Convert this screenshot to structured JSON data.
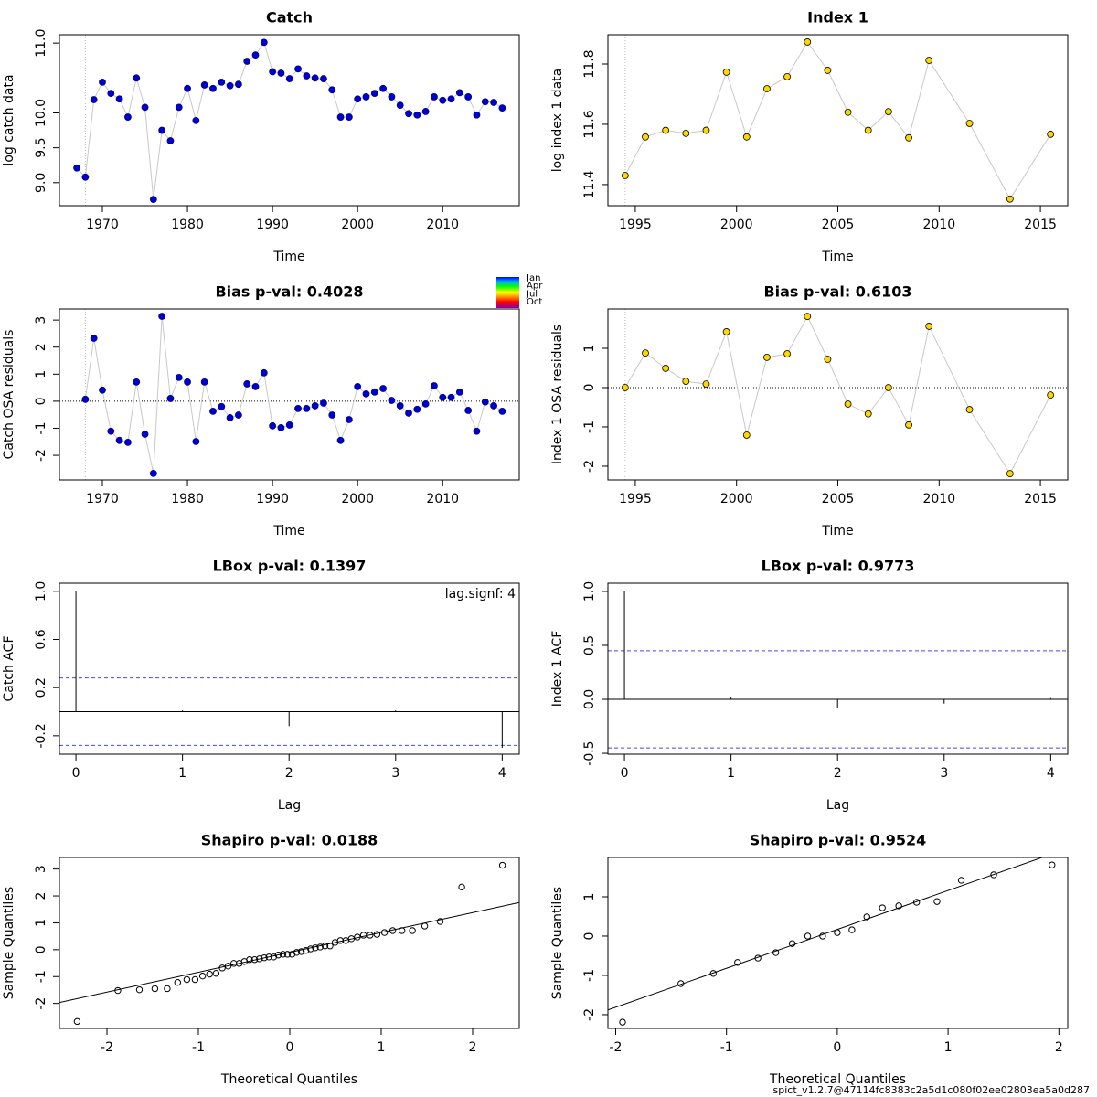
{
  "chart_data": [
    {
      "type": "line",
      "title": "Catch",
      "title_color": "#000000",
      "xlabel": "Time",
      "ylabel": "log catch data",
      "x": [
        1967,
        1968,
        1969,
        1970,
        1971,
        1972,
        1973,
        1974,
        1975,
        1976,
        1977,
        1978,
        1979,
        1980,
        1981,
        1982,
        1983,
        1984,
        1985,
        1986,
        1987,
        1988,
        1989,
        1990,
        1991,
        1992,
        1993,
        1994,
        1995,
        1996,
        1997,
        1998,
        1999,
        2000,
        2001,
        2002,
        2003,
        2004,
        2005,
        2006,
        2007,
        2008,
        2009,
        2010,
        2011,
        2012,
        2013,
        2014,
        2015,
        2016,
        2017
      ],
      "values": [
        9.21,
        9.08,
        10.19,
        10.44,
        10.28,
        10.2,
        9.94,
        10.5,
        10.08,
        8.76,
        9.75,
        9.6,
        10.08,
        10.35,
        9.89,
        10.4,
        10.35,
        10.44,
        10.39,
        10.41,
        10.74,
        10.83,
        11.01,
        10.59,
        10.57,
        10.49,
        10.63,
        10.53,
        10.5,
        10.49,
        10.33,
        9.94,
        9.94,
        10.2,
        10.23,
        10.28,
        10.35,
        10.23,
        10.11,
        9.99,
        9.97,
        10.02,
        10.23,
        10.18,
        10.2,
        10.29,
        10.23,
        9.97,
        10.16,
        10.15,
        10.07
      ],
      "color": "#0000cd",
      "edge": "#00008b",
      "xlim": [
        1964.95,
        2019
      ],
      "ylim": [
        8.67,
        11.12
      ],
      "xticks": [
        1970,
        1980,
        1990,
        2000,
        2010
      ],
      "yticks": [
        {
          "value": 9,
          "label": "9.0"
        },
        9.5,
        {
          "value": 10,
          "label": "10.0"
        },
        {
          "value": 11,
          "label": "11.0"
        }
      ],
      "vline": 1968
    },
    {
      "type": "line",
      "title": "Index 1",
      "title_color": "#000000",
      "xlabel": "Time",
      "ylabel": "log index 1 data",
      "x": [
        1994.5,
        1995.5,
        1996.5,
        1997.5,
        1998.5,
        1999.5,
        2000.5,
        2001.5,
        2002.5,
        2003.5,
        2004.5,
        2005.5,
        2006.5,
        2007.5,
        2008.5,
        2009.5,
        2011.5,
        2013.5,
        2015.5
      ],
      "values": [
        11.43,
        11.558,
        11.58,
        11.57,
        11.58,
        11.773,
        11.558,
        11.718,
        11.758,
        11.873,
        11.779,
        11.64,
        11.58,
        11.642,
        11.555,
        11.812,
        11.603,
        11.352,
        11.567
      ],
      "color": "#ffd700",
      "edge": "#000000",
      "xlim": [
        1993.65,
        2016.35
      ],
      "ylim": [
        11.33,
        11.897
      ],
      "xticks": [
        1995,
        2000,
        2005,
        2010,
        2015
      ],
      "yticks": [
        11.4,
        11.6,
        11.8
      ],
      "vline": 1994.5
    },
    {
      "type": "line",
      "title": "Bias p-val: 0.4028",
      "title_color": "#228b22",
      "xlabel": "Time",
      "ylabel": "Catch OSA residuals",
      "x": [
        1968,
        1969,
        1970,
        1971,
        1972,
        1973,
        1974,
        1975,
        1976,
        1977,
        1978,
        1979,
        1980,
        1981,
        1982,
        1983,
        1984,
        1985,
        1986,
        1987,
        1988,
        1989,
        1990,
        1991,
        1992,
        1993,
        1994,
        1995,
        1996,
        1997,
        1998,
        1999,
        2000,
        2001,
        2002,
        2003,
        2004,
        2005,
        2006,
        2007,
        2008,
        2009,
        2010,
        2011,
        2012,
        2013,
        2014,
        2015,
        2016,
        2017
      ],
      "values": [
        0.07,
        2.33,
        0.41,
        -1.11,
        -1.45,
        -1.52,
        0.71,
        -1.22,
        -2.67,
        3.14,
        0.1,
        0.88,
        0.71,
        -1.49,
        0.71,
        -0.37,
        -0.2,
        -0.61,
        -0.51,
        0.64,
        0.54,
        1.05,
        -0.91,
        -0.98,
        -0.88,
        -0.27,
        -0.27,
        -0.17,
        -0.07,
        -0.51,
        -1.45,
        -0.68,
        0.54,
        0.27,
        0.34,
        0.47,
        0.03,
        -0.17,
        -0.44,
        -0.3,
        -0.1,
        0.57,
        0.14,
        0.14,
        0.34,
        -0.34,
        -1.11,
        -0.03,
        -0.17,
        -0.37
      ],
      "color": "#0000cd",
      "edge": "#00008b",
      "xlim": [
        1964.95,
        2019
      ],
      "ylim": [
        -2.91,
        3.41
      ],
      "xticks": [
        1970,
        1980,
        1990,
        2000,
        2010
      ],
      "yticks": [
        -2,
        -1,
        0,
        1,
        2,
        3
      ],
      "vline": 1968,
      "hline": 0,
      "legend": [
        "Jan",
        "Apr",
        "Jul",
        "Oct"
      ]
    },
    {
      "type": "line",
      "title": "Bias p-val: 0.6103",
      "title_color": "#228b22",
      "xlabel": "Time",
      "ylabel": "Index 1 OSA residuals",
      "x": [
        1994.5,
        1995.5,
        1996.5,
        1997.5,
        1998.5,
        1999.5,
        2000.5,
        2001.5,
        2002.5,
        2003.5,
        2004.5,
        2005.5,
        2006.5,
        2007.5,
        2008.5,
        2009.5,
        2011.5,
        2013.5,
        2015.5
      ],
      "values": [
        0,
        0.88,
        0.49,
        0.16,
        0.09,
        1.42,
        -1.21,
        0.77,
        0.86,
        1.81,
        0.72,
        -0.42,
        -0.67,
        0,
        -0.95,
        1.56,
        -0.56,
        -2.19,
        -0.19
      ],
      "color": "#ffd700",
      "edge": "#000000",
      "xlim": [
        1993.65,
        2016.35
      ],
      "ylim": [
        -2.35,
        2.0
      ],
      "xticks": [
        1995,
        2000,
        2005,
        2010,
        2015
      ],
      "yticks": [
        -2,
        -1,
        0,
        1
      ],
      "vline": 1994.5,
      "hline": 0
    },
    {
      "type": "stem",
      "title": "LBox p-val: 0.1397",
      "title_color": "#228b22",
      "xlabel": "Lag",
      "ylabel": "Catch ACF",
      "x": [
        0,
        1,
        2,
        3,
        4
      ],
      "values": [
        1,
        0.01,
        -0.12,
        0.01,
        -0.3
      ],
      "ci_lines": [
        0.28,
        -0.28
      ],
      "hline": 0,
      "xlim": [
        -0.155,
        4.16
      ],
      "ylim": [
        -0.353,
        1.067
      ],
      "xticks": [
        0,
        1,
        2,
        3,
        4
      ],
      "yticks": [
        -0.2,
        0.2,
        0.6,
        {
          "value": 1,
          "label": "1.0"
        }
      ],
      "annotation": "lag.signf: 4"
    },
    {
      "type": "stem",
      "title": "LBox p-val: 0.9773",
      "title_color": "#228b22",
      "xlabel": "Lag",
      "ylabel": "Index 1 ACF",
      "x": [
        0,
        1,
        2,
        3,
        4
      ],
      "values": [
        1,
        0.025,
        -0.08,
        -0.04,
        0.02
      ],
      "ci_lines": [
        0.45,
        -0.45
      ],
      "hline": 0,
      "xlim": [
        -0.155,
        4.16
      ],
      "ylim": [
        -0.508,
        1.076
      ],
      "xticks": [
        0,
        1,
        2,
        3,
        4
      ],
      "yticks": [
        -0.5,
        {
          "value": 0,
          "label": "0.0"
        },
        0.5,
        {
          "value": 1,
          "label": "1.0"
        }
      ]
    },
    {
      "type": "scatter",
      "title": "Shapiro p-val: 0.0188",
      "title_color": "#ff0000",
      "xlabel": "Theoretical Quantiles",
      "ylabel": "Sample Quantiles",
      "x": [
        -2.326,
        -1.881,
        -1.645,
        -1.476,
        -1.341,
        -1.227,
        -1.126,
        -1.036,
        -0.954,
        -0.878,
        -0.806,
        -0.739,
        -0.674,
        -0.613,
        -0.553,
        -0.496,
        -0.44,
        -0.385,
        -0.332,
        -0.279,
        -0.228,
        -0.176,
        -0.126,
        -0.075,
        -0.025,
        0.025,
        0.075,
        0.126,
        0.176,
        0.228,
        0.279,
        0.332,
        0.385,
        0.44,
        0.496,
        0.553,
        0.613,
        0.674,
        0.739,
        0.806,
        0.878,
        0.954,
        1.036,
        1.126,
        1.227,
        1.341,
        1.476,
        1.645,
        1.881,
        2.326
      ],
      "values": [
        -2.67,
        -1.52,
        -1.49,
        -1.45,
        -1.45,
        -1.22,
        -1.11,
        -1.11,
        -0.98,
        -0.91,
        -0.88,
        -0.68,
        -0.61,
        -0.51,
        -0.51,
        -0.44,
        -0.37,
        -0.37,
        -0.34,
        -0.3,
        -0.27,
        -0.27,
        -0.2,
        -0.17,
        -0.17,
        -0.17,
        -0.1,
        -0.07,
        -0.03,
        0.03,
        0.07,
        0.1,
        0.14,
        0.14,
        0.27,
        0.34,
        0.34,
        0.41,
        0.47,
        0.54,
        0.54,
        0.57,
        0.64,
        0.71,
        0.71,
        0.71,
        0.88,
        1.05,
        2.33,
        3.14
      ],
      "line": {
        "intercept": -0.1,
        "slope": 0.74
      },
      "xlim": [
        -2.52,
        2.51
      ],
      "ylim": [
        -2.93,
        3.43
      ],
      "xticks": [
        -2,
        -1,
        0,
        1,
        2
      ],
      "yticks": [
        -2,
        -1,
        0,
        1,
        2,
        3
      ]
    },
    {
      "type": "scatter",
      "title": "Shapiro p-val: 0.9524",
      "title_color": "#228b22",
      "xlabel": "Theoretical Quantiles",
      "ylabel": "Sample Quantiles",
      "x": [
        -1.938,
        -1.412,
        -1.119,
        -0.9,
        -0.716,
        -0.555,
        -0.407,
        -0.267,
        -0.132,
        0,
        0.132,
        0.267,
        0.407,
        0.555,
        0.716,
        0.9,
        1.119,
        1.412,
        1.938
      ],
      "values": [
        -2.19,
        -1.21,
        -0.95,
        -0.67,
        -0.56,
        -0.42,
        -0.19,
        0,
        0,
        0.09,
        0.16,
        0.49,
        0.72,
        0.77,
        0.86,
        0.88,
        1.42,
        1.56,
        1.81
      ],
      "line": {
        "intercept": 0.17,
        "slope": 0.99
      },
      "xlim": [
        -2.07,
        2.08
      ],
      "ylim": [
        -2.35,
        2.0
      ],
      "xticks": [
        -2,
        -1,
        0,
        1,
        2
      ],
      "yticks": [
        -2,
        -1,
        0,
        1
      ]
    }
  ],
  "footer": "spict_v1.2.7@47114fc8383c2a5d1c080f02ee02803ea5a0d287"
}
